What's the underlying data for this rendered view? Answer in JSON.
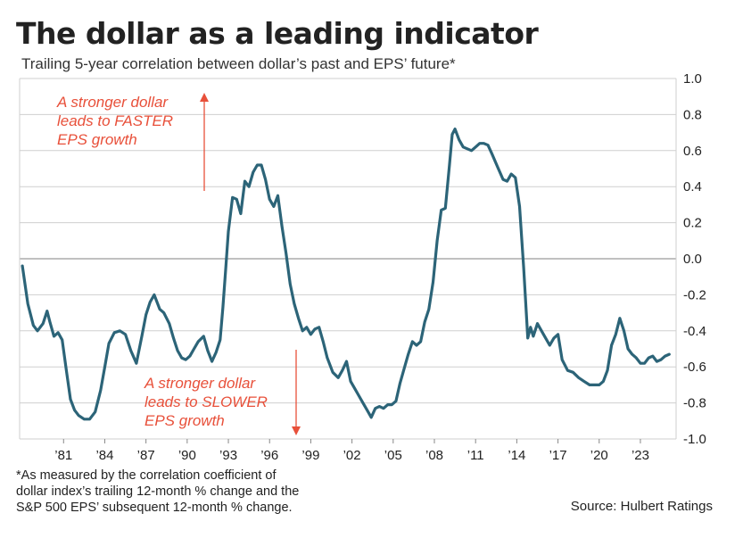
{
  "title": "The dollar as a leading indicator",
  "subtitle": "Trailing 5-year correlation between dollar’s past and EPS’ future*",
  "footnote": [
    "*As measured by the correlation coefficient of",
    "dollar index’s trailing 12-month % change and the",
    "S&P 500 EPS’ subsequent 12-month % change."
  ],
  "source": "Source: Hulbert Ratings",
  "annotations": {
    "upper": [
      "A stronger dollar",
      "leads to FASTER",
      "EPS growth"
    ],
    "lower": [
      "A stronger dollar",
      "leads to SLOWER",
      "EPS growth"
    ]
  },
  "colors": {
    "line": "#2c6478",
    "annotation": "#e8503a",
    "grid": "#cfcfcf",
    "zero_line": "#9a9a9a"
  },
  "chart_data": {
    "type": "line",
    "title": "The dollar as a leading indicator",
    "subtitle": "Trailing 5-year correlation between dollar’s past and EPS’ future*",
    "xlabel": "",
    "ylabel": "",
    "xlim": [
      1977.8,
      2025.6
    ],
    "ylim": [
      -1.0,
      1.0
    ],
    "y_axis_side": "right",
    "grid": "horizontal",
    "x_tick_values": [
      1981,
      1984,
      1987,
      1990,
      1993,
      1996,
      1999,
      2002,
      2005,
      2008,
      2011,
      2014,
      2017,
      2020,
      2023
    ],
    "x_tick_labels": [
      "’81",
      "’84",
      "’87",
      "’90",
      "’93",
      "’96",
      "’99",
      "’02",
      "’05",
      "’08",
      "’11",
      "’14",
      "’17",
      "’20",
      "’23"
    ],
    "y_tick_values": [
      1.0,
      0.8,
      0.6,
      0.4,
      0.2,
      0.0,
      -0.2,
      -0.4,
      -0.6,
      -0.8,
      -1.0
    ],
    "y_tick_labels": [
      "1.0",
      "0.8",
      "0.6",
      "0.4",
      "0.2",
      "0.0",
      "-0.2",
      "-0.4",
      "-0.6",
      "-0.8",
      "-1.0"
    ],
    "series": [
      {
        "x": [
          1978.0,
          1978.4,
          1978.8,
          1979.1,
          1979.5,
          1979.8,
          1980.0,
          1980.3,
          1980.6,
          1980.9,
          1981.2,
          1981.5,
          1981.8,
          1982.1,
          1982.5,
          1982.9,
          1983.3,
          1983.7,
          1984.0,
          1984.3,
          1984.7,
          1985.1,
          1985.5,
          1985.9,
          1986.3,
          1986.7,
          1987.0,
          1987.3,
          1987.6,
          1988.0,
          1988.3,
          1988.7,
          1989.0,
          1989.3,
          1989.6,
          1989.9,
          1990.2,
          1990.5,
          1990.8,
          1991.2,
          1991.5,
          1991.8,
          1992.1,
          1992.4,
          1992.6,
          1992.8,
          1993.0,
          1993.3,
          1993.6,
          1993.9,
          1994.2,
          1994.5,
          1994.8,
          1995.1,
          1995.4,
          1995.7,
          1996.0,
          1996.3,
          1996.6,
          1996.9,
          1997.2,
          1997.5,
          1997.8,
          1998.1,
          1998.4,
          1998.7,
          1999.0,
          1999.3,
          1999.6,
          1999.9,
          2000.2,
          2000.6,
          2001.0,
          2001.3,
          2001.6,
          2001.9,
          2002.2,
          2002.5,
          2002.8,
          2003.1,
          2003.4,
          2003.7,
          2004.0,
          2004.3,
          2004.6,
          2004.9,
          2005.2,
          2005.5,
          2005.8,
          2006.1,
          2006.4,
          2006.7,
          2007.0,
          2007.3,
          2007.6,
          2007.9,
          2008.2,
          2008.5,
          2008.8,
          2009.1,
          2009.3,
          2009.5,
          2009.8,
          2010.1,
          2010.4,
          2010.7,
          2011.0,
          2011.3,
          2011.6,
          2011.9,
          2012.2,
          2012.6,
          2013.0,
          2013.3,
          2013.6,
          2013.9,
          2014.2,
          2014.5,
          2014.8,
          2015.0,
          2015.2,
          2015.5,
          2015.8,
          2016.1,
          2016.4,
          2016.7,
          2017.0,
          2017.3,
          2017.7,
          2018.1,
          2018.5,
          2018.9,
          2019.3,
          2019.7,
          2020.0,
          2020.3,
          2020.6,
          2020.9,
          2021.2,
          2021.5,
          2021.8,
          2022.1,
          2022.4,
          2022.7,
          2023.0,
          2023.3,
          2023.6,
          2023.9,
          2024.2,
          2024.5,
          2024.8,
          2025.1
        ],
        "y": [
          -0.04,
          -0.25,
          -0.37,
          -0.4,
          -0.36,
          -0.29,
          -0.35,
          -0.43,
          -0.41,
          -0.45,
          -0.62,
          -0.78,
          -0.84,
          -0.87,
          -0.89,
          -0.89,
          -0.85,
          -0.73,
          -0.6,
          -0.47,
          -0.41,
          -0.4,
          -0.42,
          -0.51,
          -0.58,
          -0.43,
          -0.31,
          -0.24,
          -0.2,
          -0.28,
          -0.3,
          -0.36,
          -0.44,
          -0.51,
          -0.55,
          -0.56,
          -0.54,
          -0.5,
          -0.46,
          -0.43,
          -0.51,
          -0.57,
          -0.52,
          -0.45,
          -0.27,
          -0.06,
          0.15,
          0.34,
          0.33,
          0.25,
          0.43,
          0.4,
          0.48,
          0.52,
          0.52,
          0.44,
          0.33,
          0.29,
          0.35,
          0.18,
          0.03,
          -0.14,
          -0.25,
          -0.33,
          -0.4,
          -0.38,
          -0.42,
          -0.39,
          -0.38,
          -0.46,
          -0.55,
          -0.63,
          -0.66,
          -0.62,
          -0.57,
          -0.68,
          -0.72,
          -0.76,
          -0.8,
          -0.84,
          -0.88,
          -0.83,
          -0.82,
          -0.83,
          -0.81,
          -0.81,
          -0.79,
          -0.69,
          -0.61,
          -0.53,
          -0.46,
          -0.48,
          -0.46,
          -0.35,
          -0.28,
          -0.13,
          0.1,
          0.27,
          0.28,
          0.52,
          0.69,
          0.72,
          0.66,
          0.62,
          0.61,
          0.6,
          0.62,
          0.64,
          0.64,
          0.63,
          0.58,
          0.51,
          0.44,
          0.43,
          0.47,
          0.45,
          0.29,
          -0.05,
          -0.44,
          -0.38,
          -0.43,
          -0.36,
          -0.4,
          -0.44,
          -0.48,
          -0.44,
          -0.42,
          -0.56,
          -0.62,
          -0.63,
          -0.66,
          -0.68,
          -0.7,
          -0.7,
          -0.7,
          -0.68,
          -0.62,
          -0.48,
          -0.42,
          -0.33,
          -0.4,
          -0.5,
          -0.53,
          -0.55,
          -0.58,
          -0.58,
          -0.55,
          -0.54,
          -0.57,
          -0.56,
          -0.54,
          -0.53
        ]
      }
    ]
  }
}
